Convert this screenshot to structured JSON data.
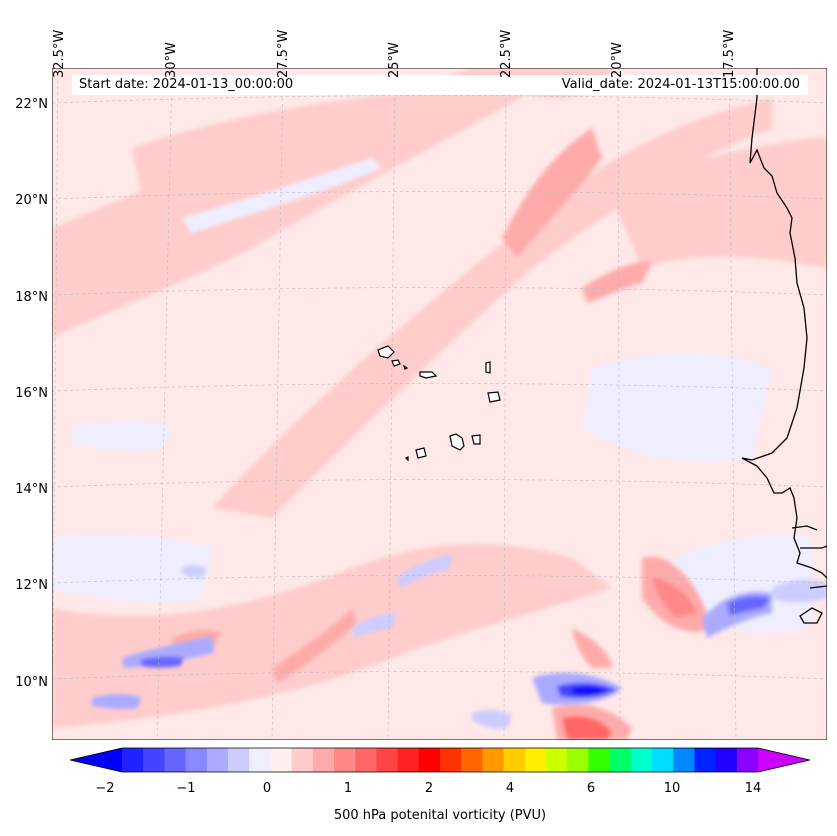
{
  "header": {
    "start_date": "Start date: 2024-01-13_00:00:00",
    "valid_date": "Valid_date: 2024-01-13T15:00:00.00"
  },
  "axes": {
    "lon_labels": [
      "32.5°W",
      "30°W",
      "27.5°W",
      "25°W",
      "22.5°W",
      "20°W",
      "17.5°W"
    ],
    "lat_labels": [
      "22°N",
      "20°N",
      "18°N",
      "16°N",
      "14°N",
      "12°N",
      "10°N"
    ]
  },
  "colorbar": {
    "ticks": [
      "−2",
      "−1",
      "0",
      "1",
      "2",
      "4",
      "6",
      "10",
      "14"
    ],
    "label": "500 hPa potenital vorticity (PVU)",
    "colors": [
      "#0000ff",
      "#2222ff",
      "#4444ff",
      "#6666ff",
      "#8888ff",
      "#aaaaff",
      "#ccccff",
      "#eeeeff",
      "#ffeeee",
      "#ffcccc",
      "#ffaaaa",
      "#ff8888",
      "#ff6666",
      "#ff4444",
      "#ff2222",
      "#ff0000",
      "#ff3300",
      "#ff6600",
      "#ff9900",
      "#ffcc00",
      "#ffee00",
      "#ccff00",
      "#99ff00",
      "#33ff00",
      "#00ff66",
      "#00ffcc",
      "#00ddff",
      "#0088ff",
      "#0022ff",
      "#2200ff",
      "#8800ff",
      "#cc00ff"
    ]
  },
  "map": {
    "ocean_fill": "#fff0f0",
    "coast_color": "#000000"
  }
}
